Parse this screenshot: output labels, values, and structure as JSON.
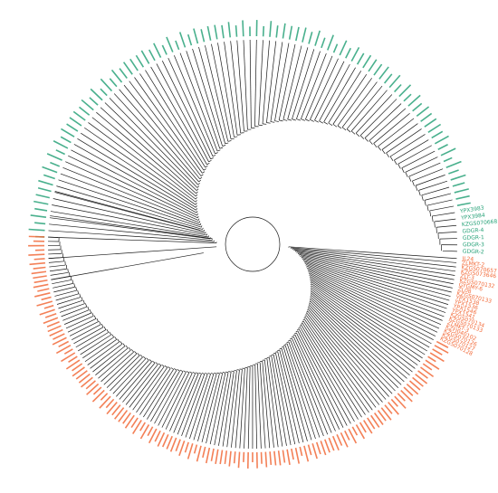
{
  "chart_data": {
    "type": "circular-phylogenetic-tree",
    "clade_colors": {
      "green_clade": "#2aa37a",
      "orange_clade": "#f26b3a",
      "branches": "#1a1a1a"
    },
    "clades": [
      {
        "name": "green",
        "color": "#2aa37a",
        "tip_count": 100,
        "readable_tips": [
          "GDGR-2",
          "GDGR-3",
          "GDGR-1",
          "GDGR-4",
          "KZGS070668",
          "YPX3984",
          "YPX3983"
        ]
      },
      {
        "name": "orange",
        "color": "#f26b3a",
        "tip_count": 150,
        "readable_tips": [
          "JL24",
          "ZLMKT-2",
          "KZGS070657",
          "KZGS073646",
          "ZLT-3",
          "KZGS070132",
          "GYGMY-6",
          "ZL08",
          "KZGS070133",
          "YPX1538",
          "YPX1536",
          "YPX1546",
          "YPX1541",
          "KZGS070134",
          "KZGS070133",
          "ZLMKT-3",
          "KZFJ040102",
          "KZGS070126",
          "KZGS070127",
          "KZGS070128"
        ]
      }
    ]
  }
}
